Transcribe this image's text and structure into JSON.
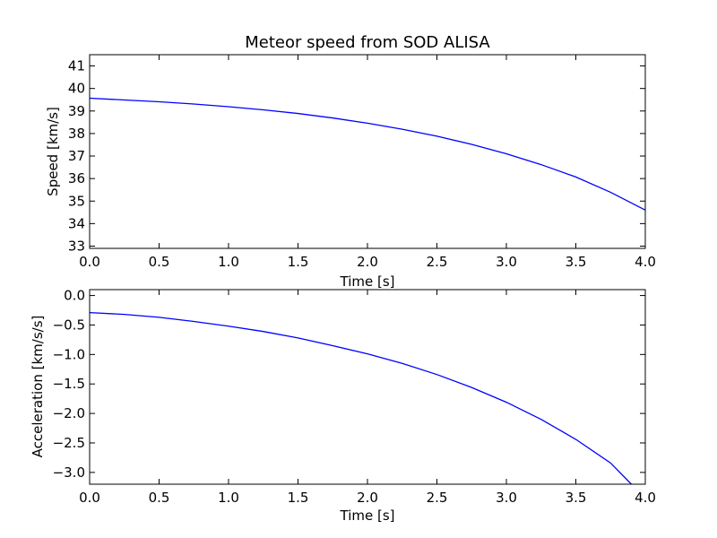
{
  "chart_data": [
    {
      "type": "line",
      "title": "Meteor speed from  SOD ALISA",
      "xlabel": "Time [s]",
      "ylabel": "Speed [km/s]",
      "xlim": [
        0,
        4
      ],
      "ylim": [
        32.9,
        41.5
      ],
      "xticks": [
        "0.0",
        "0.5",
        "1.0",
        "1.5",
        "2.0",
        "2.5",
        "3.0",
        "3.5",
        "4.0"
      ],
      "yticks": [
        "33",
        "34",
        "35",
        "36",
        "37",
        "38",
        "39",
        "40",
        "41"
      ],
      "grid": false,
      "line_color": "#0000ff",
      "series": [
        {
          "x": [
            0,
            0.25,
            0.5,
            0.75,
            1.0,
            1.25,
            1.5,
            1.75,
            2.0,
            2.25,
            2.5,
            2.75,
            3.0,
            3.25,
            3.5,
            3.75,
            4.0
          ],
          "y": [
            39.57,
            39.49,
            39.41,
            39.31,
            39.19,
            39.05,
            38.89,
            38.69,
            38.46,
            38.19,
            37.88,
            37.52,
            37.1,
            36.62,
            36.07,
            35.39,
            34.6
          ]
        }
      ]
    },
    {
      "type": "line",
      "title": "",
      "xlabel": "Time [s]",
      "ylabel": "Acceleration [km/s/s]",
      "xlim": [
        0,
        4
      ],
      "ylim": [
        -3.2,
        0.1
      ],
      "xticks": [
        "0.0",
        "0.5",
        "1.0",
        "1.5",
        "2.0",
        "2.5",
        "3.0",
        "3.5",
        "4.0"
      ],
      "yticks": [
        "0.0",
        "−0.5",
        "−1.0",
        "−1.5",
        "−2.0",
        "−2.5",
        "−3.0"
      ],
      "grid": false,
      "line_color": "#0000ff",
      "series": [
        {
          "x": [
            0,
            0.25,
            0.5,
            0.75,
            1.0,
            1.25,
            1.5,
            1.75,
            2.0,
            2.25,
            2.5,
            2.75,
            3.0,
            3.25,
            3.5,
            3.75,
            3.9
          ],
          "y": [
            -0.29,
            -0.32,
            -0.37,
            -0.44,
            -0.52,
            -0.61,
            -0.72,
            -0.85,
            -0.99,
            -1.15,
            -1.34,
            -1.56,
            -1.81,
            -2.1,
            -2.44,
            -2.84,
            -3.2
          ]
        }
      ]
    }
  ]
}
